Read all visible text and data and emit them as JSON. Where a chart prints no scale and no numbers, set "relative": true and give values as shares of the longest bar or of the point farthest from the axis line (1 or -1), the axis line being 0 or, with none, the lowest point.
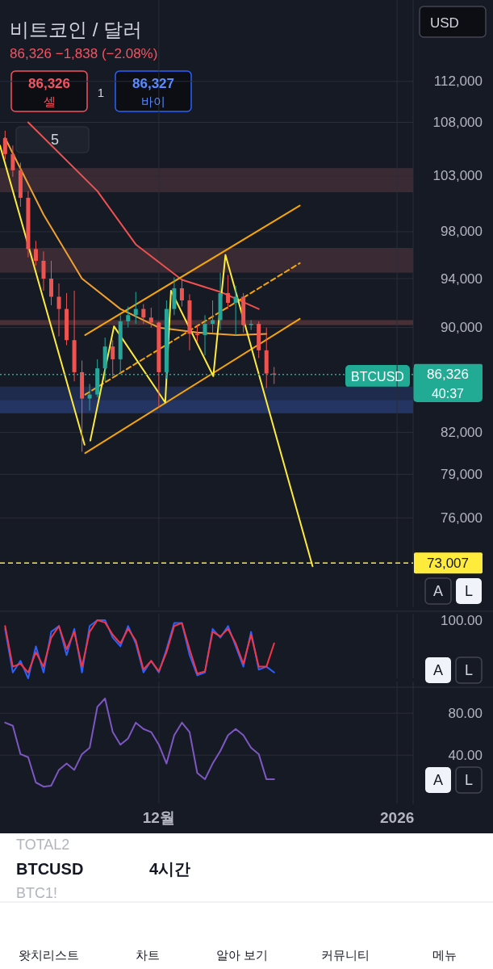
{
  "chart_data": [
    {
      "type": "candlestick",
      "title": "비트코인 / 달러",
      "log": "y",
      "grid": true,
      "tick_labels": "y",
      "x": [
        "2025-11-11",
        "2025-11-12",
        "2025-11-13",
        "2025-11-14",
        "2025-11-15",
        "2025-11-16",
        "2025-11-17",
        "2025-11-18",
        "2025-11-19",
        "2025-11-20",
        "2025-11-21",
        "2025-11-22",
        "2025-11-23",
        "2025-11-24",
        "2025-11-25",
        "2025-11-26",
        "2025-11-27",
        "2025-11-28",
        "2025-11-29",
        "2025-11-30",
        "2025-12-01",
        "2025-12-02",
        "2025-12-03",
        "2025-12-04",
        "2025-12-05",
        "2025-12-06",
        "2025-12-07",
        "2025-12-08",
        "2025-12-09",
        "2025-12-10",
        "2025-12-11",
        "2025-12-12",
        "2025-12-13",
        "2025-12-14",
        "2025-12-15",
        "2025-12-16"
      ],
      "ohlc": [
        [
          106500,
          107200,
          104500,
          105000
        ],
        [
          105000,
          105800,
          102900,
          103500
        ],
        [
          103500,
          104200,
          100200,
          101000
        ],
        [
          101000,
          101600,
          95800,
          96500
        ],
        [
          96500,
          97200,
          95100,
          95500
        ],
        [
          95500,
          96300,
          93000,
          94000
        ],
        [
          94000,
          95500,
          91800,
          92500
        ],
        [
          92500,
          93600,
          89300,
          91500
        ],
        [
          91500,
          92800,
          88600,
          89000
        ],
        [
          89000,
          93000,
          85800,
          86500
        ],
        [
          86500,
          87400,
          80600,
          84500
        ],
        [
          84500,
          85600,
          83600,
          84800
        ],
        [
          84800,
          87500,
          84600,
          86800
        ],
        [
          86800,
          89200,
          85800,
          88500
        ],
        [
          88500,
          89000,
          86200,
          87500
        ],
        [
          87500,
          91000,
          86400,
          90500
        ],
        [
          90500,
          91700,
          90000,
          91000
        ],
        [
          91000,
          92900,
          90300,
          91500
        ],
        [
          91500,
          91900,
          90300,
          90800
        ],
        [
          90800,
          91600,
          90000,
          90400
        ],
        [
          90400,
          90500,
          83800,
          86500
        ],
        [
          86500,
          92200,
          86000,
          91500
        ],
        [
          91500,
          94100,
          91000,
          93200
        ],
        [
          93200,
          94000,
          91700,
          92200
        ],
        [
          92200,
          92700,
          88200,
          89500
        ],
        [
          89500,
          90200,
          88900,
          89400
        ],
        [
          89400,
          91000,
          87800,
          90300
        ],
        [
          90300,
          92200,
          89600,
          90600
        ],
        [
          90600,
          94500,
          89800,
          92800
        ],
        [
          92800,
          94300,
          91500,
          92000
        ],
        [
          92000,
          93400,
          89400,
          92500
        ],
        [
          92500,
          92800,
          89600,
          90200
        ],
        [
          90200,
          90600,
          89800,
          90300
        ],
        [
          90300,
          90500,
          87600,
          88200
        ],
        [
          88200,
          90000,
          85300,
          86400
        ],
        [
          86400,
          86900,
          85600,
          86326
        ]
      ],
      "colors": [
        "#ef5350",
        "#ef5350",
        "#ef5350",
        "#ef5350",
        "#ef5350",
        "#ef5350",
        "#ef5350",
        "#ef5350",
        "#ef5350",
        "#ef5350",
        "#ef5350",
        "#26a69a",
        "#26a69a",
        "#26a69a",
        "#ef5350",
        "#26a69a",
        "#26a69a",
        "#26a69a",
        "#ef5350",
        "#ef5350",
        "#ef5350",
        "#26a69a",
        "#26a69a",
        "#ef5350",
        "#ef5350",
        "#ef5350",
        "#26a69a",
        "#26a69a",
        "#26a69a",
        "#ef5350",
        "#26a69a",
        "#ef5350",
        "#26a69a",
        "#ef5350",
        "#ef5350",
        "#ef5350"
      ],
      "xlim": [
        "2025-11-10T08:00",
        "2026-01-03T02:00"
      ],
      "xticks": [
        {
          "value": "2025-12-01",
          "label": null
        },
        {
          "value": "2026-01-01",
          "label": null
        }
      ],
      "ylim": [
        70200,
        120400
      ],
      "yticks": [
        {
          "value": 76000,
          "label": "76,000"
        },
        {
          "value": 79000,
          "label": "79,000"
        },
        {
          "value": 82000,
          "label": "82,000"
        },
        {
          "value": 90000,
          "label": "90,000"
        },
        {
          "value": 94000,
          "label": "94,000"
        },
        {
          "value": 98000,
          "label": "98,000"
        },
        {
          "value": 103000,
          "label": "103,000"
        },
        {
          "value": 108000,
          "label": "108,000"
        },
        {
          "value": 112000,
          "label": "112,000"
        }
      ],
      "series": [
        {
          "type": "line",
          "color": "#f05050",
          "x": [
            "2025-11-14",
            "2025-11-23",
            "2025-11-28",
            "2025-12-04",
            "2025-12-09",
            "2025-12-14"
          ],
          "values": [
            108000,
            101600,
            96900,
            93900,
            92900,
            91500
          ]
        },
        {
          "type": "line",
          "color": "#f0a030",
          "x": [
            "2025-11-11",
            "2025-11-16",
            "2025-11-21",
            "2025-11-26",
            "2025-12-01",
            "2025-12-06",
            "2025-12-11",
            "2025-12-15"
          ],
          "values": [
            106500,
            99500,
            94000,
            91500,
            90000,
            89600,
            89400,
            89500
          ]
        },
        {
          "type": "line",
          "color": "#f7a600",
          "x": [
            "2025-11-21T10:00",
            "2025-12-19T08:00"
          ],
          "values": [
            89400,
            100300
          ]
        },
        {
          "type": "line",
          "color": "#f7a600",
          "x": [
            "2025-11-21T10:00",
            "2025-12-19T08:00"
          ],
          "values": [
            80500,
            90700
          ]
        },
        {
          "type": "line",
          "color": "#f7a600",
          "line_style": "dashed",
          "x": [
            "2025-11-21T10:00",
            "2025-12-19T08:00"
          ],
          "values": [
            84800,
            95300
          ]
        },
        {
          "type": "line",
          "color": "#ffeb3b",
          "x": [
            "2025-11-10T08:00",
            "2025-11-21T08:00"
          ],
          "values": [
            105800,
            81100
          ]
        },
        {
          "type": "line",
          "color": "#ffeb3b",
          "x": [
            "2025-11-22T02:00",
            "2025-11-25T04:00",
            "2025-12-01T20:00",
            "2025-12-02T14:00",
            "2025-12-08T02:00",
            "2025-12-09T16:00",
            "2025-12-21T00:00"
          ],
          "values": [
            81400,
            90100,
            84200,
            93000,
            86200,
            96000,
            72800
          ]
        }
      ],
      "bands": [
        {
          "axis": "y",
          "from": 101500,
          "to": 103700,
          "color": "#3a2a33"
        },
        {
          "axis": "y",
          "from": 94500,
          "to": 96600,
          "color": "#3a2a33"
        },
        {
          "axis": "y",
          "from": 90200,
          "to": 90600,
          "color": "#4a2f36"
        },
        {
          "axis": "y",
          "from": 84400,
          "to": 85400,
          "color": "#1f2b4d"
        },
        {
          "axis": "y",
          "from": 83400,
          "to": 84400,
          "color": "#243463"
        }
      ],
      "ref_lines": [
        {
          "axis": "y",
          "value": 86326,
          "label": "86,326",
          "color": "#22ab94",
          "line_style": "dotted"
        },
        {
          "axis": "y",
          "value": 73007,
          "label": "73,007",
          "color": "#ffeb3b",
          "line_style": "dashed"
        }
      ],
      "annotations": [
        "86,326 −1,838 (−2.08%)",
        "86,326",
        "셀",
        "1",
        "86,327",
        "바이",
        "USD",
        "5",
        "BTCUSD",
        "40:37",
        "A",
        "L",
        "TOTAL2",
        "BTCUSD",
        "BTC1!",
        "4시간",
        "왓치리스트",
        "차트",
        "알아 보기",
        "커뮤니티",
        "메뉴"
      ]
    },
    {
      "type": "line",
      "relative": true,
      "grid": "x",
      "tick_labels": false,
      "x": [
        "2025-11-11",
        "2025-11-12",
        "2025-11-13",
        "2025-11-14",
        "2025-11-15",
        "2025-11-16",
        "2025-11-17",
        "2025-11-18",
        "2025-11-19",
        "2025-11-20",
        "2025-11-21",
        "2025-11-22",
        "2025-11-23",
        "2025-11-24",
        "2025-11-25",
        "2025-11-26",
        "2025-11-27",
        "2025-11-28",
        "2025-11-29",
        "2025-11-30",
        "2025-12-01",
        "2025-12-02",
        "2025-12-03",
        "2025-12-04",
        "2025-12-05",
        "2025-12-06",
        "2025-12-07",
        "2025-12-08",
        "2025-12-09",
        "2025-12-10",
        "2025-12-11",
        "2025-12-12",
        "2025-12-13",
        "2025-12-14",
        "2025-12-15",
        "2025-12-16"
      ],
      "xlim": [
        "2025-11-10T08:00",
        "2026-01-03T02:00"
      ],
      "xticks": [
        {
          "value": "2025-12-01",
          "label": null
        },
        {
          "value": "2026-01-01",
          "label": null
        }
      ],
      "series": [
        {
          "color": "#2962ff",
          "values": [
            0.85,
            0.1,
            0.3,
            0,
            0.55,
            0.1,
            0.8,
            0.9,
            0.4,
            0.85,
            0.1,
            0.9,
            1,
            1,
            0.7,
            0.55,
            0.9,
            0.6,
            0.1,
            0.3,
            0.1,
            0.5,
            0.95,
            0.95,
            0.4,
            0.05,
            0.1,
            0.85,
            0.7,
            0.9,
            0.55,
            0.2,
            0.8,
            0.15,
            0.2,
            0.1
          ]
        },
        {
          "color": "#f23645",
          "values": [
            0.9,
            0.2,
            0.25,
            0.1,
            0.45,
            0.2,
            0.7,
            0.9,
            0.5,
            0.8,
            0.2,
            0.8,
            1,
            0.96,
            0.75,
            0.6,
            0.85,
            0.65,
            0.15,
            0.3,
            0.12,
            0.45,
            0.9,
            0.95,
            0.5,
            0.08,
            0.12,
            0.8,
            0.72,
            0.85,
            0.6,
            0.25,
            0.75,
            0.2,
            0.2,
            0.6
          ]
        }
      ],
      "annotations": [
        "100.00",
        "A",
        "L"
      ]
    },
    {
      "type": "line",
      "grid": true,
      "x": [
        "2025-11-11",
        "2025-11-12",
        "2025-11-13",
        "2025-11-14",
        "2025-11-15",
        "2025-11-16",
        "2025-11-17",
        "2025-11-18",
        "2025-11-19",
        "2025-11-20",
        "2025-11-21",
        "2025-11-22",
        "2025-11-23",
        "2025-11-24",
        "2025-11-25",
        "2025-11-26",
        "2025-11-27",
        "2025-11-28",
        "2025-11-29",
        "2025-11-30",
        "2025-12-01",
        "2025-12-02",
        "2025-12-03",
        "2025-12-04",
        "2025-12-05",
        "2025-12-06",
        "2025-12-07",
        "2025-12-08",
        "2025-12-09",
        "2025-12-10",
        "2025-12-11",
        "2025-12-12",
        "2025-12-13",
        "2025-12-14",
        "2025-12-15",
        "2025-12-16"
      ],
      "xlim": [
        "2025-11-10T08:00",
        "2026-01-03T02:00"
      ],
      "xticks": [
        {
          "value": "2025-12-01",
          "label": "12월"
        },
        {
          "value": "2026-01-01",
          "label": "2026"
        }
      ],
      "ylim": [
        -6,
        104
      ],
      "yticks": [
        {
          "value": 40,
          "label": "40.00"
        },
        {
          "value": 80,
          "label": "80.00"
        }
      ],
      "series": [
        {
          "color": "#7e57c2",
          "values": [
            71,
            68,
            41,
            38,
            14,
            10,
            11,
            26,
            32,
            26,
            41,
            47,
            86,
            94,
            62,
            50,
            56,
            71,
            65,
            62,
            50,
            32,
            59,
            71,
            62,
            23,
            17,
            32,
            44,
            59,
            65,
            59,
            47,
            41,
            17,
            17
          ]
        }
      ],
      "annotations": [
        "A",
        "L"
      ]
    }
  ]
}
